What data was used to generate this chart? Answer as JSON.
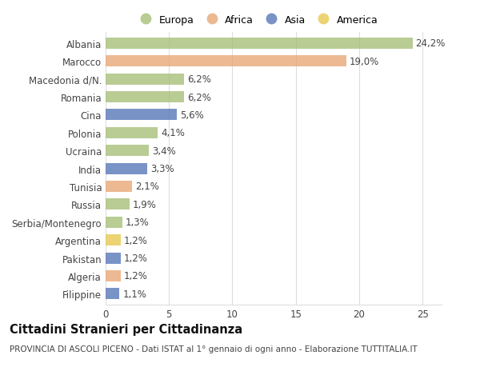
{
  "countries": [
    "Albania",
    "Marocco",
    "Macedonia d/N.",
    "Romania",
    "Cina",
    "Polonia",
    "Ucraina",
    "India",
    "Tunisia",
    "Russia",
    "Serbia/Montenegro",
    "Argentina",
    "Pakistan",
    "Algeria",
    "Filippine"
  ],
  "values": [
    24.2,
    19.0,
    6.2,
    6.2,
    5.6,
    4.1,
    3.4,
    3.3,
    2.1,
    1.9,
    1.3,
    1.2,
    1.2,
    1.2,
    1.1
  ],
  "labels": [
    "24,2%",
    "19,0%",
    "6,2%",
    "6,2%",
    "5,6%",
    "4,1%",
    "3,4%",
    "3,3%",
    "2,1%",
    "1,9%",
    "1,3%",
    "1,2%",
    "1,2%",
    "1,2%",
    "1,1%"
  ],
  "continents": [
    "Europa",
    "Africa",
    "Europa",
    "Europa",
    "Asia",
    "Europa",
    "Europa",
    "Asia",
    "Africa",
    "Europa",
    "Europa",
    "America",
    "Asia",
    "Africa",
    "Asia"
  ],
  "continent_colors": {
    "Europa": "#a8c07a",
    "Africa": "#e8a878",
    "Asia": "#5878b8",
    "America": "#e8c850"
  },
  "legend_order": [
    "Europa",
    "Africa",
    "Asia",
    "America"
  ],
  "title": "Cittadini Stranieri per Cittadinanza",
  "subtitle": "PROVINCIA DI ASCOLI PICENO - Dati ISTAT al 1° gennaio di ogni anno - Elaborazione TUTTITALIA.IT",
  "xlim": [
    0,
    26.5
  ],
  "xticks": [
    0,
    5,
    10,
    15,
    20,
    25
  ],
  "bg_color": "#ffffff",
  "grid_color": "#dddddd",
  "bar_height": 0.62,
  "label_fontsize": 8.5,
  "tick_fontsize": 8.5,
  "title_fontsize": 10.5,
  "subtitle_fontsize": 7.5
}
